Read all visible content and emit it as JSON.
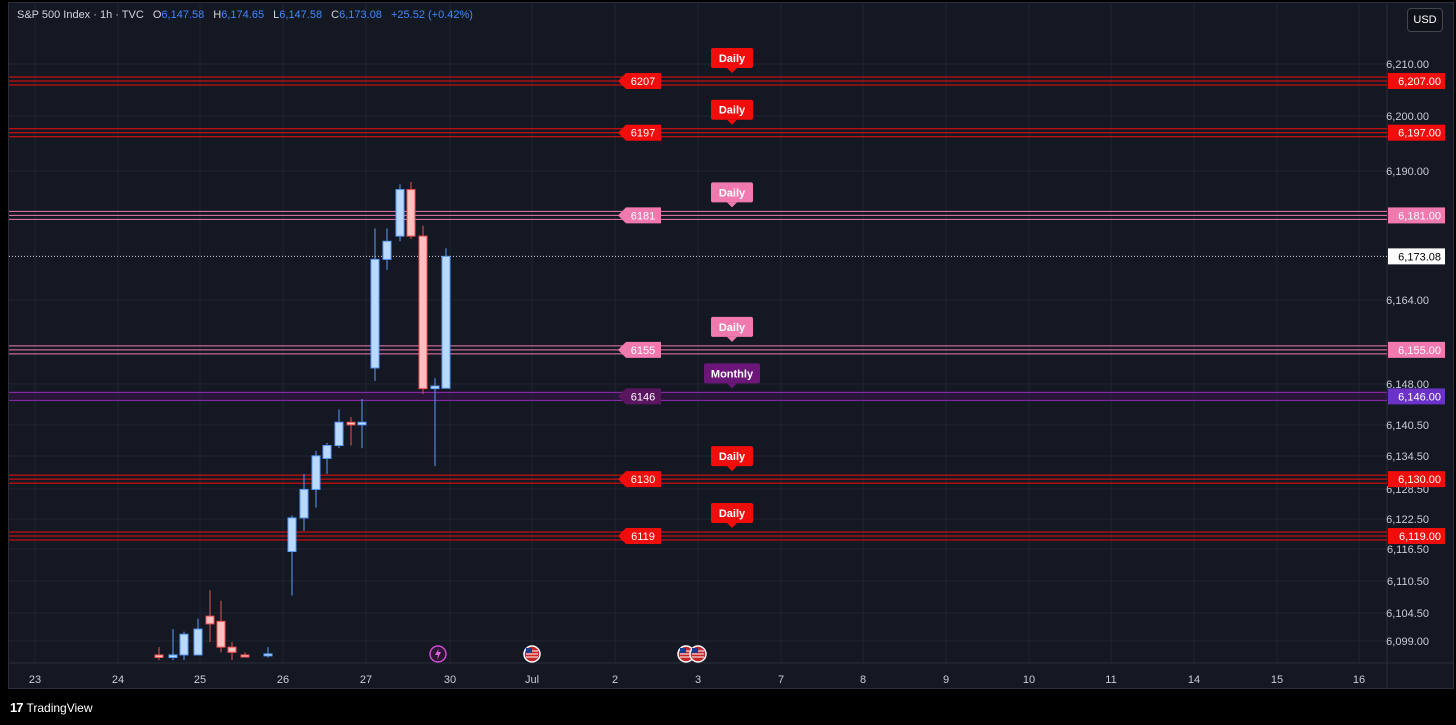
{
  "legend": {
    "symbol": "S&P 500 Index · 1h · TVC",
    "o_label": "O",
    "o": "6,147.58",
    "h_label": "H",
    "h": "6,174.65",
    "l_label": "L",
    "l": "6,147.58",
    "c_label": "C",
    "c": "6,173.08",
    "change": "+25.52 (+0.42%)"
  },
  "currency_button": "USD",
  "footer": {
    "brand": "TradingView"
  },
  "colors": {
    "background": "#141823",
    "up_candle": "#b9d9ff",
    "down_candle": "#ffc0c0",
    "daily_red": "#f20d0d",
    "daily_pink": "#f07ab0",
    "monthly_purple": "#7b1b8f",
    "axis_text": "#c9ccd4"
  },
  "chart_data": {
    "type": "candlestick",
    "title": "S&P 500 Index · 1h · TVC",
    "y_axis_ticks": [
      "6,210.00",
      "6,200.00",
      "6,190.00",
      "6,164.00",
      "6,148.00",
      "6,140.50",
      "6,134.50",
      "6,128.50",
      "6,122.50",
      "6,116.50",
      "6,110.50",
      "6,104.50",
      "6,099.00"
    ],
    "x_axis_ticks": [
      "23",
      "24",
      "25",
      "26",
      "27",
      "30",
      "Jul",
      "2",
      "3",
      "7",
      "8",
      "9",
      "10",
      "11",
      "14",
      "15",
      "16"
    ],
    "last_price": "6,173.08",
    "levels": [
      {
        "value": 6207,
        "label": "6207",
        "price": "6,207.00",
        "timeframe": "Daily",
        "style": "red"
      },
      {
        "value": 6197,
        "label": "6197",
        "price": "6,197.00",
        "timeframe": "Daily",
        "style": "red"
      },
      {
        "value": 6181,
        "label": "6181",
        "price": "6,181.00",
        "timeframe": "Daily",
        "style": "pink"
      },
      {
        "value": 6155,
        "label": "6155",
        "price": "6,155.00",
        "timeframe": "Daily",
        "style": "pink"
      },
      {
        "value": 6146,
        "label": "6146",
        "price": "6,146.00",
        "timeframe": "Monthly",
        "style": "purple"
      },
      {
        "value": 6130,
        "label": "6130",
        "price": "6,130.00",
        "timeframe": "Daily",
        "style": "red"
      },
      {
        "value": 6119,
        "label": "6119",
        "price": "6,119.00",
        "timeframe": "Daily",
        "style": "red"
      }
    ],
    "candles": [
      {
        "time": "Jun 24 15:00",
        "o": 6096.0,
        "h": 6097.5,
        "l": 6095.0,
        "c": 6095.5
      },
      {
        "time": "Jun 24 16:00",
        "o": 6095.5,
        "h": 6101.0,
        "l": 6095.0,
        "c": 6096.0
      },
      {
        "time": "Jun 24 18:00",
        "o": 6096.0,
        "h": 6100.5,
        "l": 6095.0,
        "c": 6100.0
      },
      {
        "time": "Jun 25 09:00",
        "o": 6096.0,
        "h": 6103.0,
        "l": 6096.0,
        "c": 6101.0
      },
      {
        "time": "Jun 25 10:00",
        "o": 6103.5,
        "h": 6108.5,
        "l": 6098.5,
        "c": 6102.0
      },
      {
        "time": "Jun 25 11:00",
        "o": 6102.5,
        "h": 6106.5,
        "l": 6096.5,
        "c": 6097.5
      },
      {
        "time": "Jun 25 13:00",
        "o": 6097.5,
        "h": 6098.5,
        "l": 6095.0,
        "c": 6096.5
      },
      {
        "time": "Jun 25 15:00",
        "o": 6096.0,
        "h": 6096.5,
        "l": 6095.5,
        "c": 6095.6
      },
      {
        "time": "Jun 25 17:00",
        "o": 6096.0,
        "h": 6097.5,
        "l": 6095.5,
        "c": 6096.2
      },
      {
        "time": "Jun 26 09:00",
        "o": 6116.0,
        "h": 6123.0,
        "l": 6107.5,
        "c": 6122.5
      },
      {
        "time": "Jun 26 10:00",
        "o": 6122.5,
        "h": 6131.0,
        "l": 6120.0,
        "c": 6128.0
      },
      {
        "time": "Jun 26 11:00",
        "o": 6128.0,
        "h": 6135.5,
        "l": 6124.5,
        "c": 6134.5
      },
      {
        "time": "Jun 26 12:00",
        "o": 6134.0,
        "h": 6137.0,
        "l": 6131.0,
        "c": 6136.5
      },
      {
        "time": "Jun 26 13:00",
        "o": 6136.5,
        "h": 6143.5,
        "l": 6136.0,
        "c": 6141.0
      },
      {
        "time": "Jun 26 14:00",
        "o": 6141.0,
        "h": 6142.0,
        "l": 6136.5,
        "c": 6140.5
      },
      {
        "time": "Jun 26 15:00",
        "o": 6140.5,
        "h": 6145.5,
        "l": 6136.0,
        "c": 6141.0
      },
      {
        "time": "Jun 27 09:00",
        "o": 6151.5,
        "h": 6178.5,
        "l": 6149.0,
        "c": 6172.5
      },
      {
        "time": "Jun 27 10:00",
        "o": 6172.5,
        "h": 6178.5,
        "l": 6170.5,
        "c": 6176.0
      },
      {
        "time": "Jun 27 11:00",
        "o": 6177.0,
        "h": 6187.0,
        "l": 6176.0,
        "c": 6186.0
      },
      {
        "time": "Jun 27 12:00",
        "o": 6186.0,
        "h": 6187.5,
        "l": 6176.5,
        "c": 6177.0
      },
      {
        "time": "Jun 27 13:00",
        "o": 6177.0,
        "h": 6179.0,
        "l": 6146.5,
        "c": 6147.5
      },
      {
        "time": "Jun 27 14:00",
        "o": 6147.5,
        "h": 6149.5,
        "l": 6132.5,
        "c": 6148.0
      },
      {
        "time": "Jun 27 15:00",
        "o": 6147.58,
        "h": 6174.65,
        "l": 6147.58,
        "c": 6173.08
      }
    ],
    "events": [
      {
        "x": "30",
        "kind": "earnings-lightning"
      },
      {
        "x": "Jul",
        "kind": "us-flag"
      },
      {
        "x": "3",
        "kind": "us-flag"
      },
      {
        "x": "3",
        "kind": "us-flag"
      }
    ],
    "grid": true
  }
}
